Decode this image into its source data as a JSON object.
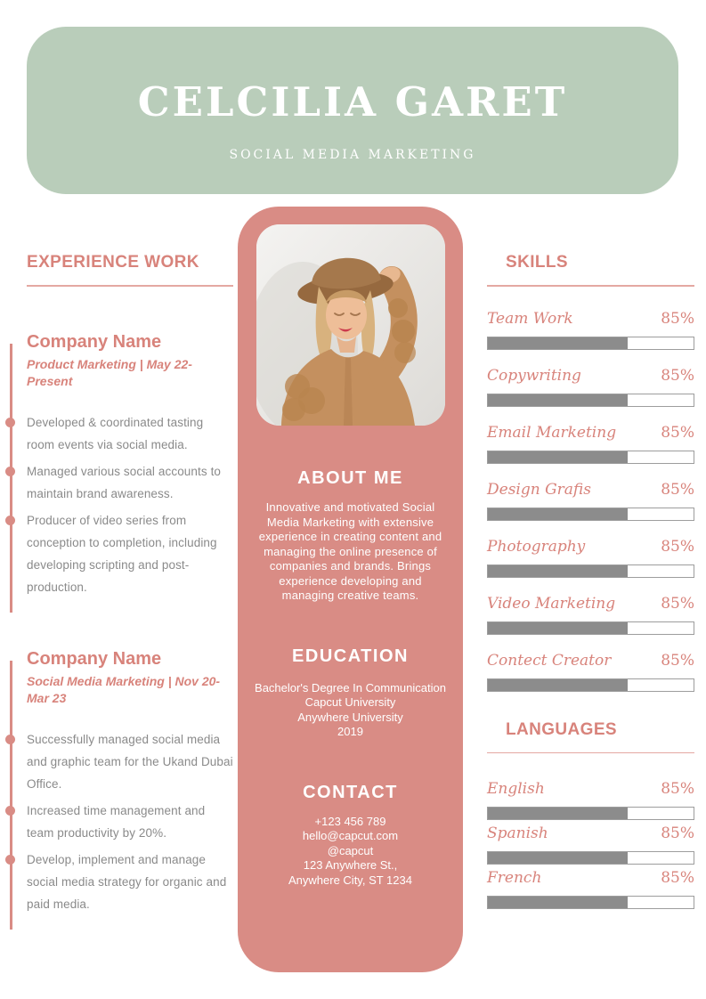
{
  "colors": {
    "green": "#b9cdba",
    "pink": "#d98c85",
    "salmon": "#d8837b",
    "bar-fill": "#8c8c8c",
    "body-gray": "#8a8a8a"
  },
  "header": {
    "name": "CELCILIA GARET",
    "role": "SOCIAL MEDIA MARKETING"
  },
  "experience": {
    "title": "EXPERIENCE WORK",
    "jobs": [
      {
        "company": "Company Name",
        "meta": "Product Marketing | May 22-Present",
        "bullets": [
          "Developed & coordinated tasting room events via social media.",
          "Managed various social accounts to maintain brand awareness.",
          "Producer of video series from conception to completion, including developing scripting and post-production."
        ]
      },
      {
        "company": "Company Name",
        "meta": "Social Media Marketing | Nov 20-Mar 23",
        "bullets": [
          "Successfully managed social media and graphic team for the Ukand Dubai Office.",
          "Increased time management and team productivity by 20%.",
          "Develop, implement and manage social media strategy for organic and paid media."
        ]
      }
    ]
  },
  "about": {
    "title": "ABOUT ME",
    "text": "Innovative and motivated Social Media Marketing with extensive experience in creating content and managing the online presence of companies and brands. Brings experience developing and managing creative teams."
  },
  "education": {
    "title": "EDUCATION",
    "lines": [
      "Bachelor's Degree In Communication",
      "Capcut University",
      "Anywhere University",
      "2019"
    ]
  },
  "contact": {
    "title": "CONTACT",
    "lines": [
      "+123 456 789",
      "hello@capcut.com",
      "@capcut",
      "123 Anywhere St.,",
      "Anywhere City, ST 1234"
    ]
  },
  "skills": {
    "title": "SKILLS",
    "items": [
      {
        "label": "Team Work",
        "value": "85%",
        "fill_pct": 68
      },
      {
        "label": "Copywriting",
        "value": "85%",
        "fill_pct": 68
      },
      {
        "label": "Email Marketing",
        "value": "85%",
        "fill_pct": 68
      },
      {
        "label": "Design Grafis",
        "value": "85%",
        "fill_pct": 68
      },
      {
        "label": "Photography",
        "value": "85%",
        "fill_pct": 68
      },
      {
        "label": "Video Marketing",
        "value": "85%",
        "fill_pct": 68
      },
      {
        "label": "Contect Creator",
        "value": "85%",
        "fill_pct": 68
      }
    ]
  },
  "languages": {
    "title": "LANGUAGES",
    "items": [
      {
        "label": "English",
        "value": "85%",
        "fill_pct": 68
      },
      {
        "label": "Spanish",
        "value": "85%",
        "fill_pct": 68
      },
      {
        "label": "French",
        "value": "85%",
        "fill_pct": 68
      }
    ]
  }
}
